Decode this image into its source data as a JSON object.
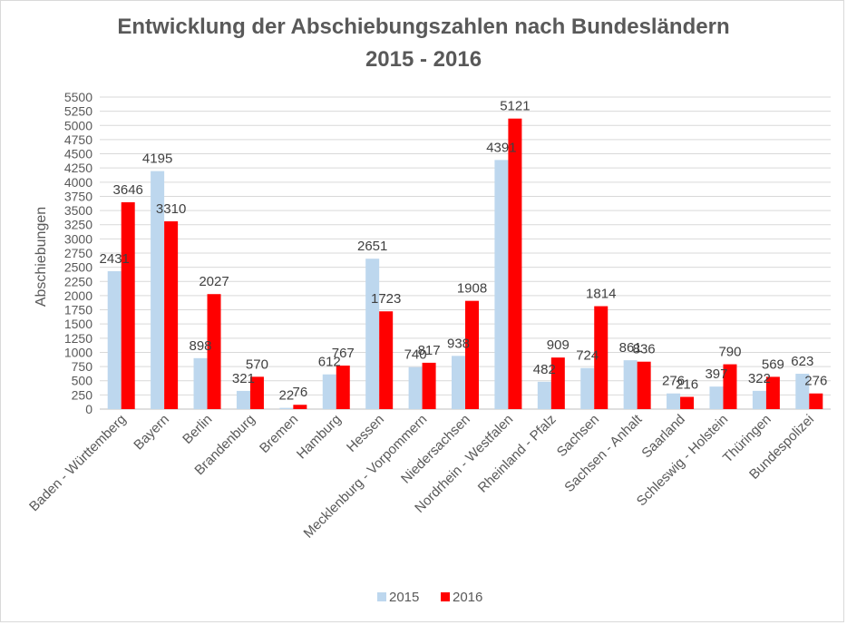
{
  "chart_data": {
    "type": "bar",
    "title": "Entwicklung der Abschiebungszahlen nach Bundesländern",
    "subtitle": "2015 - 2016",
    "xlabel": "",
    "ylabel": "Abschiebungen",
    "ylim": [
      0,
      5500
    ],
    "ytick_step": 250,
    "grid": true,
    "legend_position": "bottom",
    "categories": [
      "Baden - Württemberg",
      "Bayern",
      "Berlin",
      "Brandenburg",
      "Bremen",
      "Hamburg",
      "Hessen",
      "Mecklenburg - Vorpommern",
      "Niedersachsen",
      "Nordrhein - Westfalen",
      "Rheinland - Pfalz",
      "Sachsen",
      "Sachsen - Anhalt",
      "Saarland",
      "Schleswig - Holstein",
      "Thüringen",
      "Bundespolizei"
    ],
    "series": [
      {
        "name": "2015",
        "color": "#bdd7ee",
        "values": [
          2431,
          4195,
          898,
          321,
          22,
          612,
          2651,
          740,
          938,
          4391,
          482,
          724,
          861,
          276,
          397,
          322,
          623
        ]
      },
      {
        "name": "2016",
        "color": "#ff0000",
        "values": [
          3646,
          3310,
          2027,
          570,
          76,
          767,
          1723,
          817,
          1908,
          5121,
          909,
          1814,
          836,
          216,
          790,
          569,
          276
        ]
      }
    ]
  }
}
